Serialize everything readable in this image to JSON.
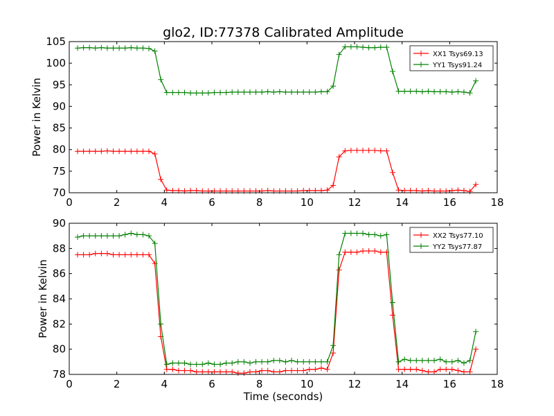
{
  "title": "glo2, ID:77378 Calibrated Amplitude",
  "chart_data": [
    {
      "type": "line",
      "xlabel": "",
      "ylabel": "Power in Kelvin",
      "xlim": [
        0,
        18
      ],
      "ylim": [
        70,
        105
      ],
      "xticks": [
        0,
        2,
        4,
        6,
        8,
        10,
        12,
        14,
        16,
        18
      ],
      "yticks": [
        70,
        75,
        80,
        85,
        90,
        95,
        100,
        105
      ],
      "grid": false,
      "legend_position": "top-right",
      "x": [
        0.35,
        0.6,
        0.85,
        1.1,
        1.35,
        1.6,
        1.85,
        2.1,
        2.35,
        2.6,
        2.85,
        3.1,
        3.35,
        3.6,
        3.85,
        4.1,
        4.35,
        4.6,
        4.85,
        5.1,
        5.35,
        5.6,
        5.85,
        6.1,
        6.35,
        6.6,
        6.85,
        7.1,
        7.35,
        7.6,
        7.85,
        8.1,
        8.35,
        8.6,
        8.85,
        9.1,
        9.35,
        9.6,
        9.85,
        10.1,
        10.35,
        10.6,
        10.85,
        11.1,
        11.35,
        11.6,
        11.85,
        12.1,
        12.35,
        12.6,
        12.85,
        13.1,
        13.35,
        13.6,
        13.85,
        14.1,
        14.35,
        14.6,
        14.85,
        15.1,
        15.35,
        15.6,
        15.85,
        16.1,
        16.35,
        16.6,
        16.85,
        17.1
      ],
      "series": [
        {
          "name": "XX1 Tsys69.13",
          "color": "#ff0000",
          "values": [
            79.6,
            79.6,
            79.6,
            79.6,
            79.6,
            79.7,
            79.6,
            79.6,
            79.6,
            79.6,
            79.6,
            79.6,
            79.6,
            79.0,
            73.1,
            70.6,
            70.5,
            70.5,
            70.4,
            70.5,
            70.5,
            70.4,
            70.4,
            70.4,
            70.4,
            70.4,
            70.4,
            70.4,
            70.4,
            70.4,
            70.4,
            70.4,
            70.5,
            70.4,
            70.4,
            70.4,
            70.4,
            70.4,
            70.5,
            70.5,
            70.5,
            70.5,
            70.6,
            71.7,
            78.3,
            79.7,
            79.8,
            79.8,
            79.8,
            79.8,
            79.8,
            79.7,
            79.7,
            74.7,
            70.6,
            70.5,
            70.5,
            70.5,
            70.4,
            70.5,
            70.4,
            70.4,
            70.4,
            70.5,
            70.6,
            70.5,
            70.3,
            71.9
          ]
        },
        {
          "name": "YY1 Tsys91.24",
          "color": "#008000",
          "values": [
            103.5,
            103.6,
            103.6,
            103.5,
            103.6,
            103.5,
            103.5,
            103.5,
            103.5,
            103.6,
            103.5,
            103.5,
            103.4,
            102.8,
            96.2,
            93.2,
            93.2,
            93.2,
            93.2,
            93.1,
            93.1,
            93.1,
            93.1,
            93.2,
            93.2,
            93.2,
            93.3,
            93.3,
            93.3,
            93.3,
            93.3,
            93.3,
            93.4,
            93.3,
            93.4,
            93.3,
            93.3,
            93.3,
            93.3,
            93.3,
            93.3,
            93.4,
            93.4,
            94.7,
            102.0,
            103.8,
            103.8,
            103.8,
            103.7,
            103.6,
            103.6,
            103.7,
            103.7,
            98.1,
            93.5,
            93.5,
            93.5,
            93.5,
            93.4,
            93.5,
            93.4,
            93.4,
            93.4,
            93.3,
            93.4,
            93.3,
            93.1,
            95.9
          ]
        }
      ]
    },
    {
      "type": "line",
      "xlabel": "Time (seconds)",
      "ylabel": "Power in Kelvin",
      "xlim": [
        0,
        18
      ],
      "ylim": [
        78,
        90
      ],
      "xticks": [
        0,
        2,
        4,
        6,
        8,
        10,
        12,
        14,
        16,
        18
      ],
      "yticks": [
        78,
        80,
        82,
        84,
        86,
        88,
        90
      ],
      "grid": false,
      "legend_position": "top-right",
      "x": [
        0.35,
        0.6,
        0.85,
        1.1,
        1.35,
        1.6,
        1.85,
        2.1,
        2.35,
        2.6,
        2.85,
        3.1,
        3.35,
        3.6,
        3.85,
        4.1,
        4.35,
        4.6,
        4.85,
        5.1,
        5.35,
        5.6,
        5.85,
        6.1,
        6.35,
        6.6,
        6.85,
        7.1,
        7.35,
        7.6,
        7.85,
        8.1,
        8.35,
        8.6,
        8.85,
        9.1,
        9.35,
        9.6,
        9.85,
        10.1,
        10.35,
        10.6,
        10.85,
        11.1,
        11.35,
        11.6,
        11.85,
        12.1,
        12.35,
        12.6,
        12.85,
        13.1,
        13.35,
        13.6,
        13.85,
        14.1,
        14.35,
        14.6,
        14.85,
        15.1,
        15.35,
        15.6,
        15.85,
        16.1,
        16.35,
        16.6,
        16.85,
        17.1
      ],
      "series": [
        {
          "name": "XX2 Tsys77.10",
          "color": "#ff0000",
          "values": [
            87.5,
            87.5,
            87.5,
            87.6,
            87.6,
            87.6,
            87.5,
            87.5,
            87.5,
            87.5,
            87.5,
            87.5,
            87.5,
            86.8,
            81.0,
            78.4,
            78.4,
            78.3,
            78.3,
            78.3,
            78.2,
            78.2,
            78.2,
            78.2,
            78.2,
            78.2,
            78.2,
            78.1,
            78.1,
            78.2,
            78.2,
            78.3,
            78.3,
            78.2,
            78.2,
            78.3,
            78.3,
            78.3,
            78.3,
            78.4,
            78.4,
            78.5,
            78.4,
            79.7,
            86.3,
            87.7,
            87.7,
            87.7,
            87.8,
            87.8,
            87.8,
            87.7,
            87.7,
            82.7,
            78.4,
            78.4,
            78.4,
            78.4,
            78.3,
            78.2,
            78.2,
            78.4,
            78.4,
            78.4,
            78.3,
            78.2,
            78.2,
            80.0
          ]
        },
        {
          "name": "YY2 Tsys77.87",
          "color": "#008000",
          "values": [
            88.9,
            89.0,
            89.0,
            89.0,
            89.0,
            89.0,
            89.0,
            89.0,
            89.1,
            89.2,
            89.1,
            89.1,
            89.0,
            88.4,
            82.0,
            78.8,
            78.9,
            78.9,
            78.9,
            78.8,
            78.8,
            78.8,
            78.9,
            78.8,
            78.8,
            78.9,
            78.9,
            79.0,
            79.0,
            78.9,
            79.0,
            79.0,
            79.0,
            79.1,
            79.1,
            79.0,
            79.1,
            79.0,
            79.0,
            79.0,
            79.0,
            79.0,
            79.0,
            80.3,
            87.5,
            89.2,
            89.2,
            89.2,
            89.2,
            89.1,
            89.1,
            89.0,
            89.1,
            83.7,
            79.0,
            79.2,
            79.1,
            79.1,
            79.1,
            79.1,
            79.1,
            79.2,
            79.0,
            79.0,
            79.1,
            78.9,
            79.1,
            81.4
          ]
        }
      ]
    }
  ]
}
